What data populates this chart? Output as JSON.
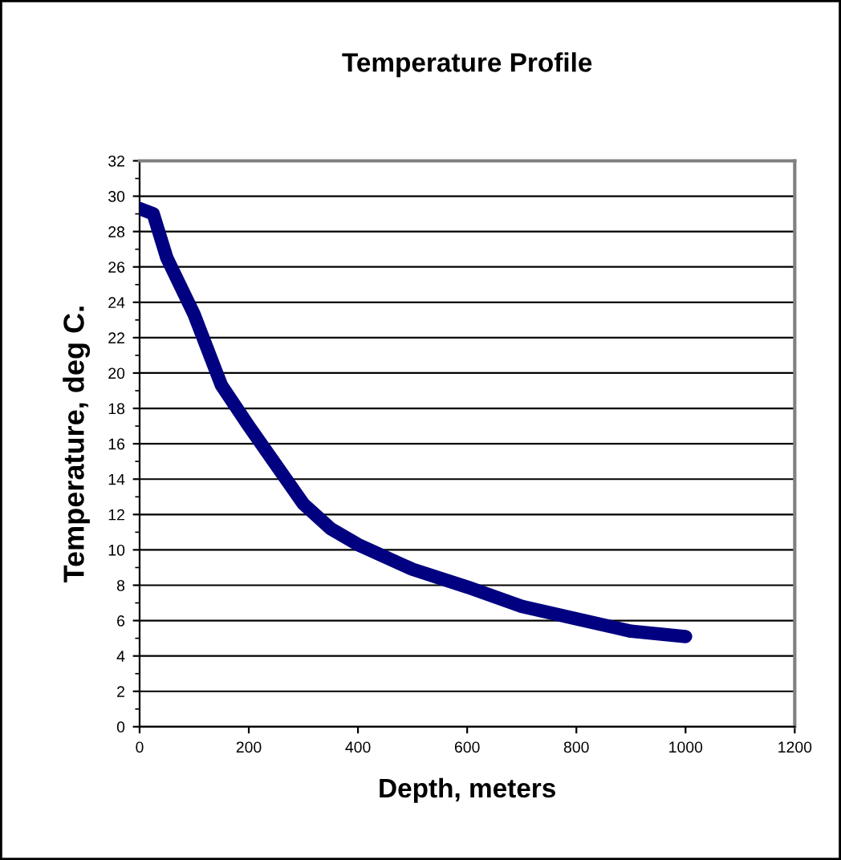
{
  "chart_data": {
    "type": "line",
    "title": "Temperature Profile",
    "xlabel": "Depth, meters",
    "ylabel": "Temperature, deg C.",
    "x": [
      0,
      25,
      50,
      100,
      150,
      200,
      250,
      300,
      350,
      400,
      500,
      600,
      700,
      800,
      900,
      1000
    ],
    "series": [
      {
        "color": "#000080",
        "values": [
          29.3,
          29,
          26.5,
          23.3,
          19.3,
          17,
          14.8,
          12.6,
          11.2,
          10.3,
          8.9,
          7.9,
          6.8,
          6.1,
          5.4,
          5.1
        ]
      }
    ],
    "xlim": [
      0,
      1200
    ],
    "xticks": [
      0,
      200,
      400,
      600,
      800,
      1000,
      1200
    ],
    "ylim": [
      0,
      32
    ],
    "yticks": [
      0,
      2,
      4,
      6,
      8,
      10,
      12,
      14,
      16,
      18,
      20,
      22,
      24,
      26,
      28,
      30,
      32
    ],
    "grid": "y",
    "marker": "none",
    "line_style": "solid"
  }
}
